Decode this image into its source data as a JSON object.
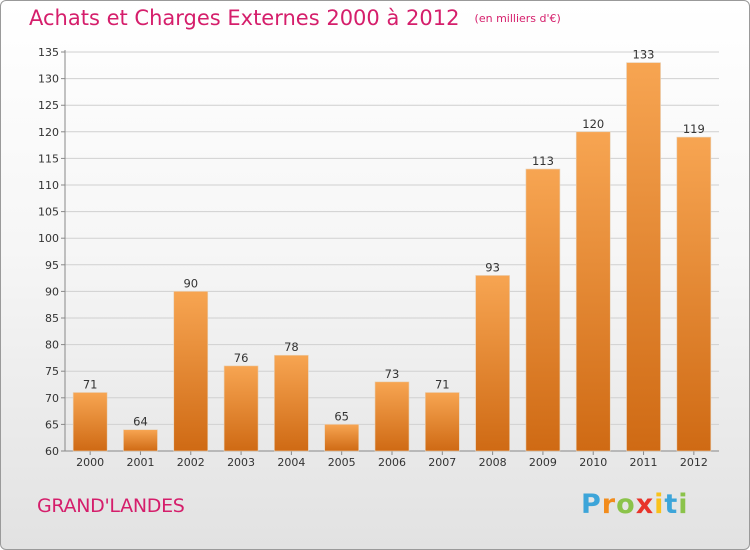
{
  "title": "Achats et Charges Externes 2000 à 2012",
  "unit": "(en milliers d'€)",
  "commune": "GRAND'LANDES",
  "logo": {
    "letters": [
      "P",
      "r",
      "o",
      "x",
      "i",
      "t",
      "i"
    ],
    "colors": [
      "#3da5d9",
      "#f28c1c",
      "#8bc34a",
      "#e8332a",
      "#f9c21b",
      "#3da5d9",
      "#8bc34a"
    ]
  },
  "colors": {
    "title": "#d51e6b",
    "bar_light": "#f7a552",
    "bar_dark": "#cf6a14",
    "grid": "#d0d0d0",
    "axis": "#888888"
  },
  "chart_data": {
    "type": "bar",
    "categories": [
      "2000",
      "2001",
      "2002",
      "2003",
      "2004",
      "2005",
      "2006",
      "2007",
      "2008",
      "2009",
      "2010",
      "2011",
      "2012"
    ],
    "values": [
      71,
      64,
      90,
      76,
      78,
      65,
      73,
      71,
      93,
      113,
      120,
      133,
      119
    ],
    "ylim": [
      60,
      135
    ],
    "yticks": [
      60,
      65,
      70,
      75,
      80,
      85,
      90,
      95,
      100,
      105,
      110,
      115,
      120,
      125,
      130,
      135
    ],
    "grid": true,
    "xlabel": "",
    "ylabel": ""
  }
}
